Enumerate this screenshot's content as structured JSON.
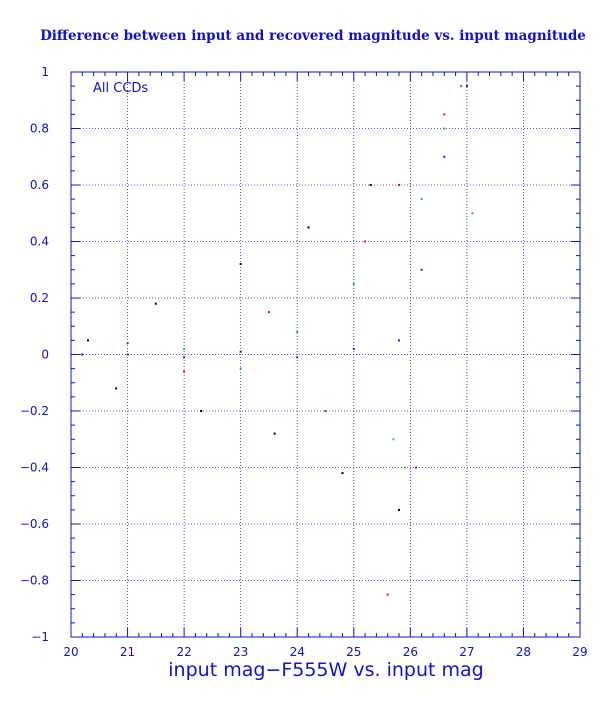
{
  "chart_data": {
    "type": "scatter",
    "title": "Difference between input and recovered magnitude vs. input magnitude",
    "xlabel": "input mag−F555W vs. input mag",
    "ylabel": "",
    "annotation": "All CCDs",
    "xlim": [
      20,
      29
    ],
    "ylim": [
      -1,
      1
    ],
    "x_ticks": [
      "20",
      "21",
      "22",
      "23",
      "24",
      "25",
      "26",
      "27",
      "28",
      "29"
    ],
    "y_ticks": [
      "−1",
      "−0.8",
      "−0.6",
      "−0.4",
      "−0.2",
      "0",
      "0.2",
      "0.4",
      "0.6",
      "0.8",
      "1"
    ],
    "y_tick_values": [
      -1,
      -0.8,
      -0.6,
      -0.4,
      -0.2,
      0,
      0.2,
      0.4,
      0.6,
      0.8,
      1
    ],
    "x_tick_values": [
      20,
      21,
      22,
      23,
      24,
      25,
      26,
      27,
      28,
      29
    ],
    "grid": true,
    "background": "#ffffff",
    "frame_color": "#1010d8",
    "grid_color": "#2020e0",
    "series": [
      {
        "color": "#000000",
        "values": [
          [
            20.3,
            0.05
          ],
          [
            20.8,
            -0.12
          ],
          [
            21.5,
            0.18
          ],
          [
            22.3,
            -0.2
          ],
          [
            23.0,
            0.32
          ],
          [
            23.6,
            -0.28
          ],
          [
            24.2,
            0.45
          ],
          [
            24.8,
            -0.42
          ],
          [
            25.3,
            0.6
          ],
          [
            25.8,
            -0.55
          ]
        ]
      },
      {
        "color": "#e01010",
        "values": [
          [
            21.0,
            0.04
          ],
          [
            22.0,
            -0.06
          ],
          [
            23.5,
            0.15
          ],
          [
            24.5,
            -0.2
          ],
          [
            25.2,
            0.4
          ],
          [
            25.8,
            0.6
          ],
          [
            26.1,
            -0.4
          ],
          [
            26.6,
            0.85
          ],
          [
            26.9,
            0.95
          ],
          [
            25.6,
            -0.85
          ]
        ]
      },
      {
        "color": "#10d010",
        "values": [
          [
            22.0,
            0.02
          ],
          [
            23.0,
            -0.05
          ],
          [
            24.0,
            0.08
          ],
          [
            25.0,
            0.25
          ],
          [
            25.7,
            -0.3
          ],
          [
            26.2,
            0.55
          ],
          [
            26.6,
            0.8
          ],
          [
            26.9,
            0.95
          ],
          [
            27.1,
            0.5
          ],
          [
            25.9,
            -0.4
          ]
        ]
      },
      {
        "color": "#1414ff",
        "values": [
          [
            20.2,
            0.0
          ],
          [
            21.0,
            0.0
          ],
          [
            22.0,
            -0.01
          ],
          [
            23.0,
            0.01
          ],
          [
            24.0,
            -0.01
          ],
          [
            25.0,
            0.02
          ],
          [
            25.8,
            0.05
          ],
          [
            26.2,
            0.3
          ],
          [
            26.6,
            0.7
          ],
          [
            27.0,
            0.95
          ]
        ]
      }
    ]
  }
}
